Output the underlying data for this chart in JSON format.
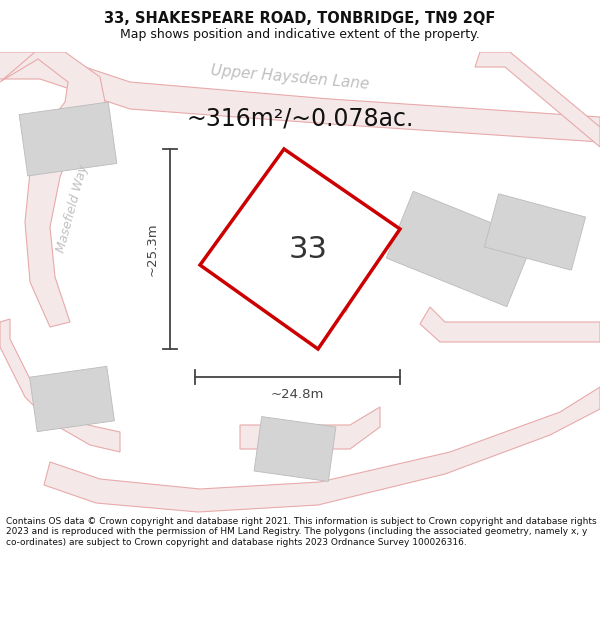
{
  "title_line1": "33, SHAKESPEARE ROAD, TONBRIDGE, TN9 2QF",
  "title_line2": "Map shows position and indicative extent of the property.",
  "footer_text": "Contains OS data © Crown copyright and database right 2021. This information is subject to Crown copyright and database rights 2023 and is reproduced with the permission of HM Land Registry. The polygons (including the associated geometry, namely x, y co-ordinates) are subject to Crown copyright and database rights 2023 Ordnance Survey 100026316.",
  "area_label": "~316m²/~0.078ac.",
  "number_label": "33",
  "dim_width": "~24.8m",
  "dim_height": "~25.3m",
  "bg_color": "#ffffff",
  "map_bg": "#f8f8f6",
  "road_line_color": "#e8aaaa",
  "road_fill_color": "#f5e8e8",
  "property_fill": "#ffffff",
  "property_edge": "#cc0000",
  "building_fill": "#d4d4d4",
  "building_edge": "#bbbbbb",
  "street_label_color": "#c0c0c0",
  "dim_color": "#444444",
  "title_fontsize": 10.5,
  "subtitle_fontsize": 9,
  "area_fontsize": 17,
  "number_fontsize": 22,
  "dim_fontsize": 9.5,
  "street_fontsize": 11
}
